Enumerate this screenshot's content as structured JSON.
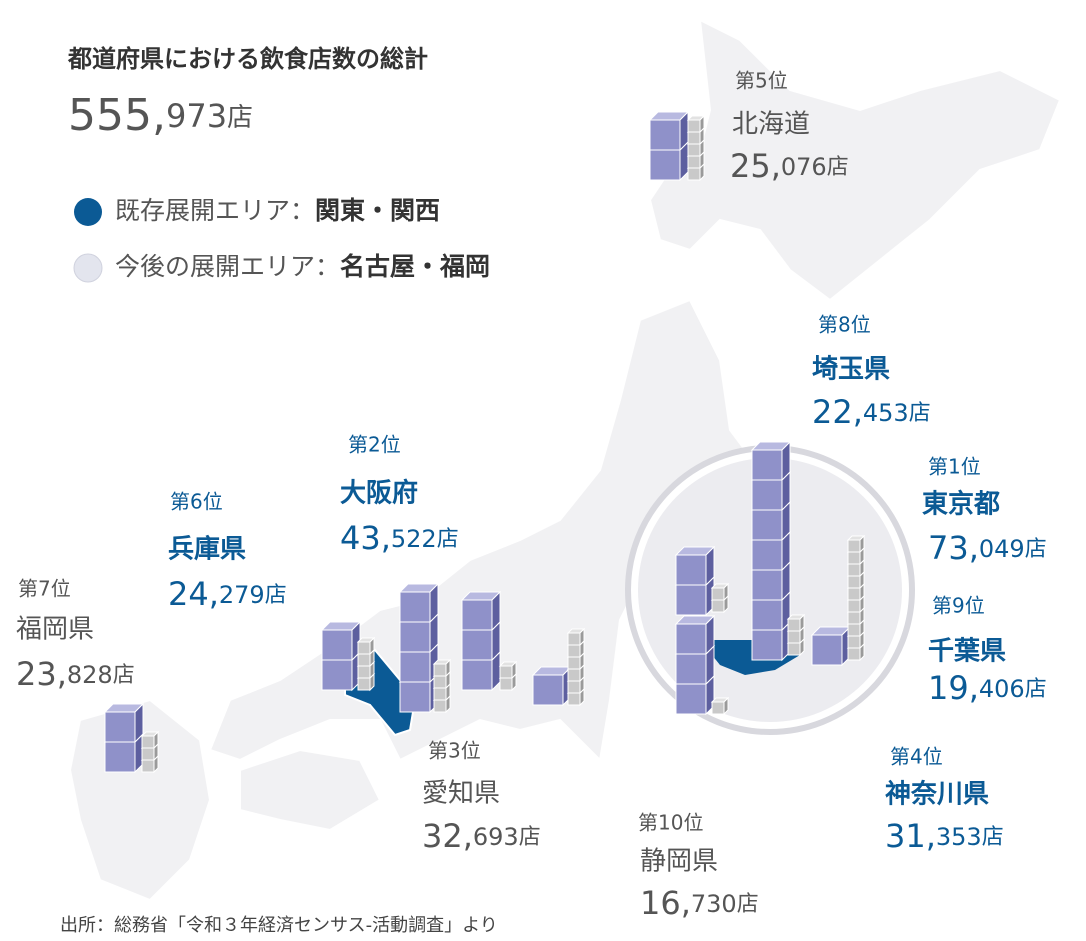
{
  "header": {
    "title": "都道府県における飲食店数の総計",
    "total_big": "555,",
    "total_small": "973",
    "unit": "店"
  },
  "legend": [
    {
      "label": "既存展開エリア：",
      "emphasis": "関東・関西",
      "color": "#0b5a95"
    },
    {
      "label": "今後の展開エリア：",
      "emphasis": "名古屋・福岡",
      "color": "#e3e5ee"
    }
  ],
  "prefectures": [
    {
      "rank": "第5位",
      "name": "北海道",
      "count_big": "25,",
      "count_small": "076",
      "unit": "店",
      "color": "#555555"
    },
    {
      "rank": "第8位",
      "name": "埼玉県",
      "count_big": "22,",
      "count_small": "453",
      "unit": "店",
      "color": "#0b5a95"
    },
    {
      "rank": "第2位",
      "name": "大阪府",
      "count_big": "43,",
      "count_small": "522",
      "unit": "店",
      "color": "#0b5a95"
    },
    {
      "rank": "第6位",
      "name": "兵庫県",
      "count_big": "24,",
      "count_small": "279",
      "unit": "店",
      "color": "#0b5a95"
    },
    {
      "rank": "第1位",
      "name": "東京都",
      "count_big": "73,",
      "count_small": "049",
      "unit": "店",
      "color": "#0b5a95"
    },
    {
      "rank": "第9位",
      "name": "千葉県",
      "count_big": "19,",
      "count_small": "406",
      "unit": "店",
      "color": "#0b5a95"
    },
    {
      "rank": "第7位",
      "name": "福岡県",
      "count_big": "23,",
      "count_small": "828",
      "unit": "店",
      "color": "#555555"
    },
    {
      "rank": "第3位",
      "name": "愛知県",
      "count_big": "32,",
      "count_small": "693",
      "unit": "店",
      "color": "#555555"
    },
    {
      "rank": "第4位",
      "name": "神奈川県",
      "count_big": "31,",
      "count_small": "353",
      "unit": "店",
      "color": "#0b5a95"
    },
    {
      "rank": "第10位",
      "name": "静岡県",
      "count_big": "16,",
      "count_small": "730",
      "unit": "店",
      "color": "#555555"
    }
  ],
  "source": "出所：総務省「令和３年経済センサス-活動調査」より"
}
